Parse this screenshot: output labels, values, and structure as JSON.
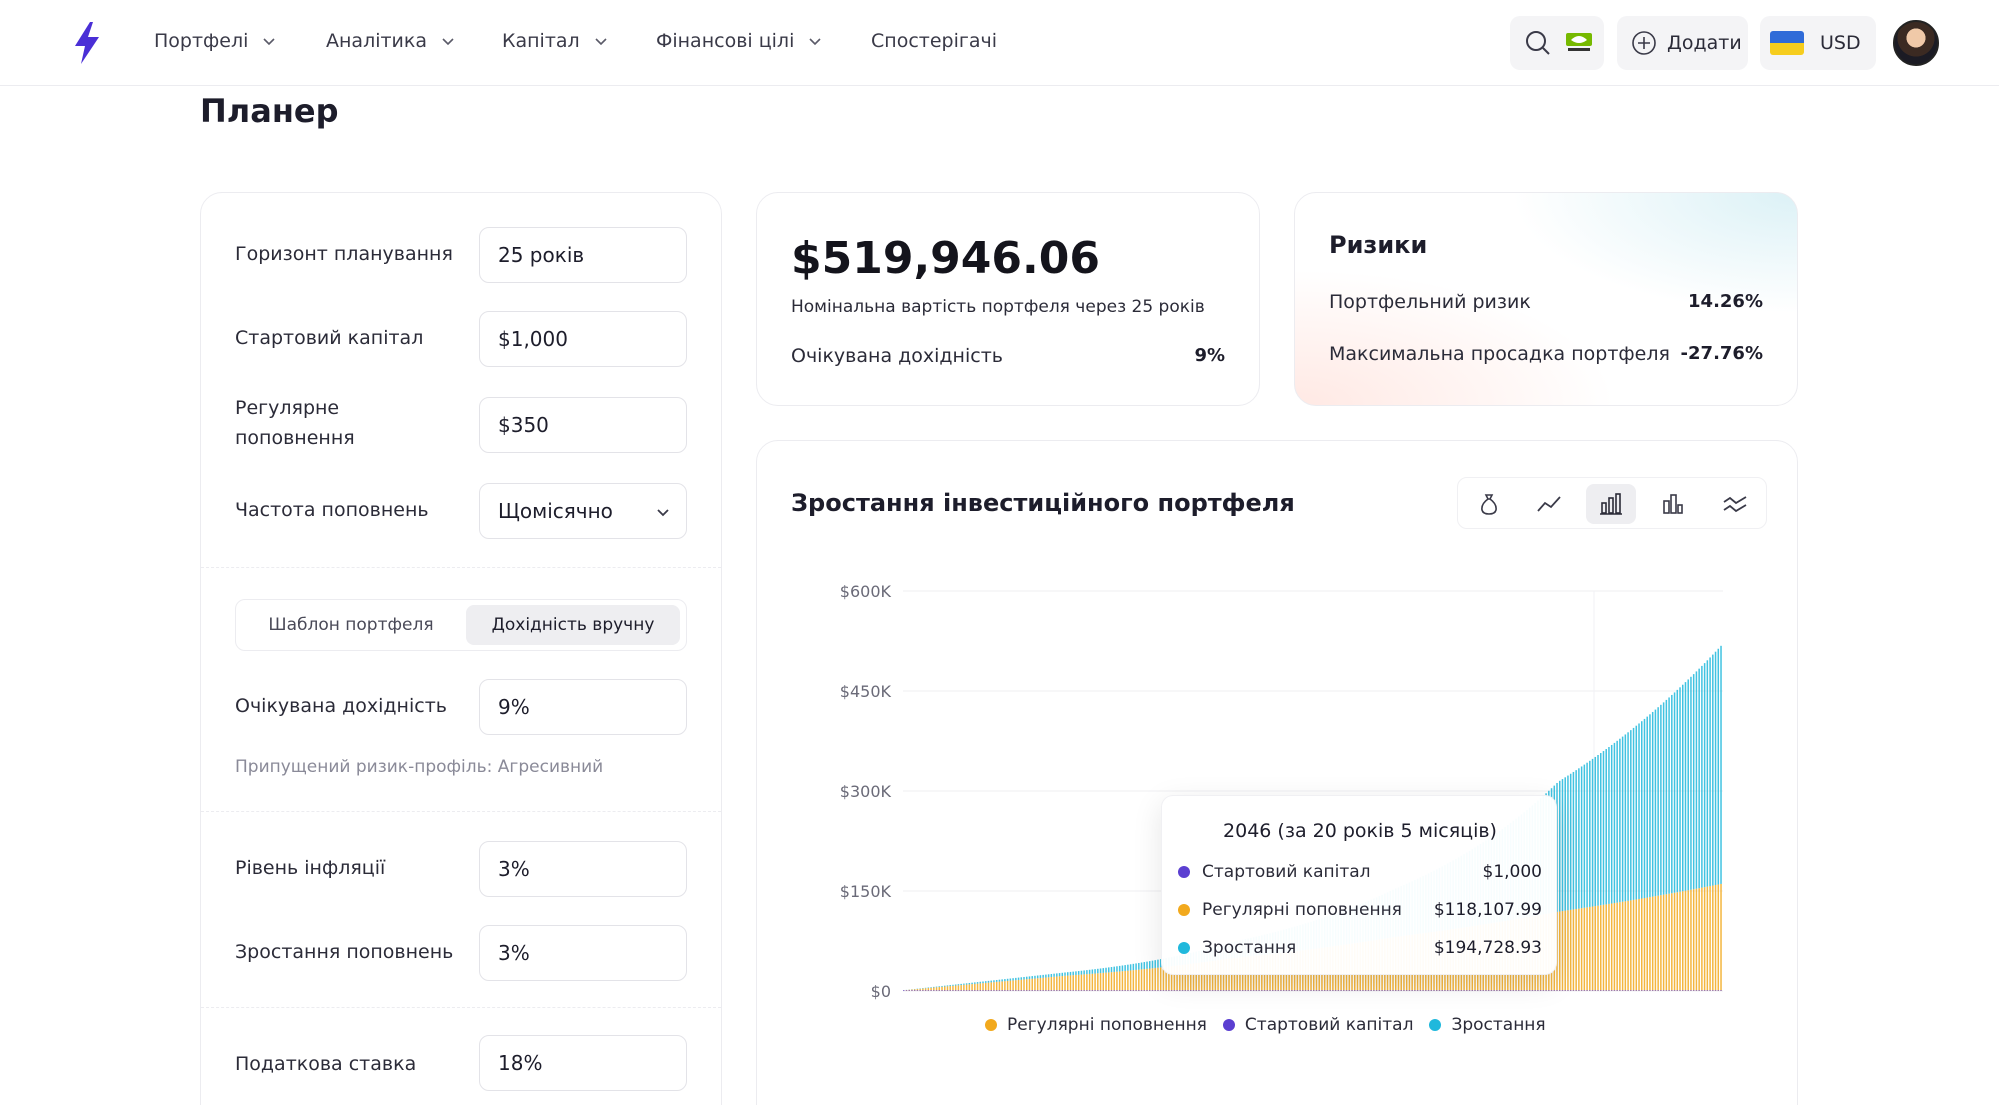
{
  "nav": {
    "items": [
      {
        "label": "Портфелі",
        "dropdown": true
      },
      {
        "label": "Аналітика",
        "dropdown": true
      },
      {
        "label": "Капітал",
        "dropdown": true
      },
      {
        "label": "Фінансові цілі",
        "dropdown": true
      },
      {
        "label": "Спостерігачі",
        "dropdown": false
      }
    ],
    "add_label": "Додати",
    "currency": "USD",
    "icons": [
      "search-icon",
      "nvidia-logo-icon",
      "plus-circle-icon",
      "ukraine-flag-icon",
      "avatar"
    ]
  },
  "page": {
    "title": "Планер"
  },
  "planner": {
    "horizon_label": "Горизонт планування",
    "horizon_value": "25 років",
    "start_capital_label": "Стартовий капітал",
    "start_capital_value": "$1,000",
    "regular_label_1": "Регулярне",
    "regular_label_2": "поповнення",
    "regular_value": "$350",
    "frequency_label": "Частота поповнень",
    "frequency_value": "Щомісячно",
    "mode_options": [
      "Шаблон портфеля",
      "Дохідність вручну"
    ],
    "mode_selected": "Дохідність вручну",
    "expected_return_label": "Очікувана дохідність",
    "expected_return_value": "9%",
    "risk_profile_hint": "Припущений ризик-профіль: Агресивний",
    "inflation_label": "Рівень інфляції",
    "inflation_value": "3%",
    "growth_label": "Зростання поповнень",
    "growth_value": "3%",
    "tax_label": "Податкова ставка",
    "tax_value": "18%"
  },
  "summary": {
    "value": "$519,946.06",
    "subtitle": "Номінальна вартість портфеля через 25 років",
    "expected_return_label": "Очікувана дохідність",
    "expected_return_value": "9%"
  },
  "risks": {
    "title": "Ризики",
    "portfolio_risk_label": "Портфельний ризик",
    "portfolio_risk_value": "14.26%",
    "max_drawdown_label": "Максимальна просадка портфеля",
    "max_drawdown_value": "-27.76%"
  },
  "chart": {
    "title": "Зростання інвестиційного портфеля",
    "tools": [
      "moneybag-icon",
      "line-chart-icon",
      "bar-chart-icon",
      "column-chart-icon",
      "wave-icon"
    ],
    "active_tool": "bar-chart-icon",
    "tooltip": {
      "title": "2046 (за 20 років 5 місяців)",
      "rows": [
        {
          "label": "Стартовий капітал",
          "value": "$1,000",
          "color": "#5b3fd1"
        },
        {
          "label": "Регулярні поповнення",
          "value": "$118,107.99",
          "color": "#f2a91d"
        },
        {
          "label": "Зростання",
          "value": "$194,728.93",
          "color": "#20b8dc"
        }
      ]
    },
    "legend": [
      {
        "label": "Регулярні поповнення",
        "color": "#f2a91d"
      },
      {
        "label": "Стартовий капітал",
        "color": "#5b3fd1"
      },
      {
        "label": "Зростання",
        "color": "#20b8dc"
      }
    ]
  },
  "chart_data": {
    "type": "bar",
    "stacked": true,
    "x": [
      0,
      5,
      10,
      15,
      20,
      25
    ],
    "xlabel": "",
    "ylabel": "",
    "ylim": [
      0,
      600000
    ],
    "yticks": [
      "$0",
      "$150K",
      "$300K",
      "$450K",
      "$600K"
    ],
    "ytick_values": [
      0,
      150000,
      300000,
      450000,
      600000
    ],
    "series": [
      {
        "name": "Стартовий капітал",
        "color": "#5b3fd1",
        "values": [
          1000,
          1000,
          1000,
          1000,
          1000,
          1000
        ]
      },
      {
        "name": "Регулярні поповнення",
        "color": "#f2a91d",
        "values": [
          0,
          22000,
          48000,
          80000,
          118000,
          160000
        ]
      },
      {
        "name": "Зростання",
        "color": "#20b8dc",
        "values": [
          0,
          5000,
          24000,
          72000,
          195000,
          359000
        ]
      }
    ],
    "grid": true,
    "legend_position": "bottom"
  }
}
